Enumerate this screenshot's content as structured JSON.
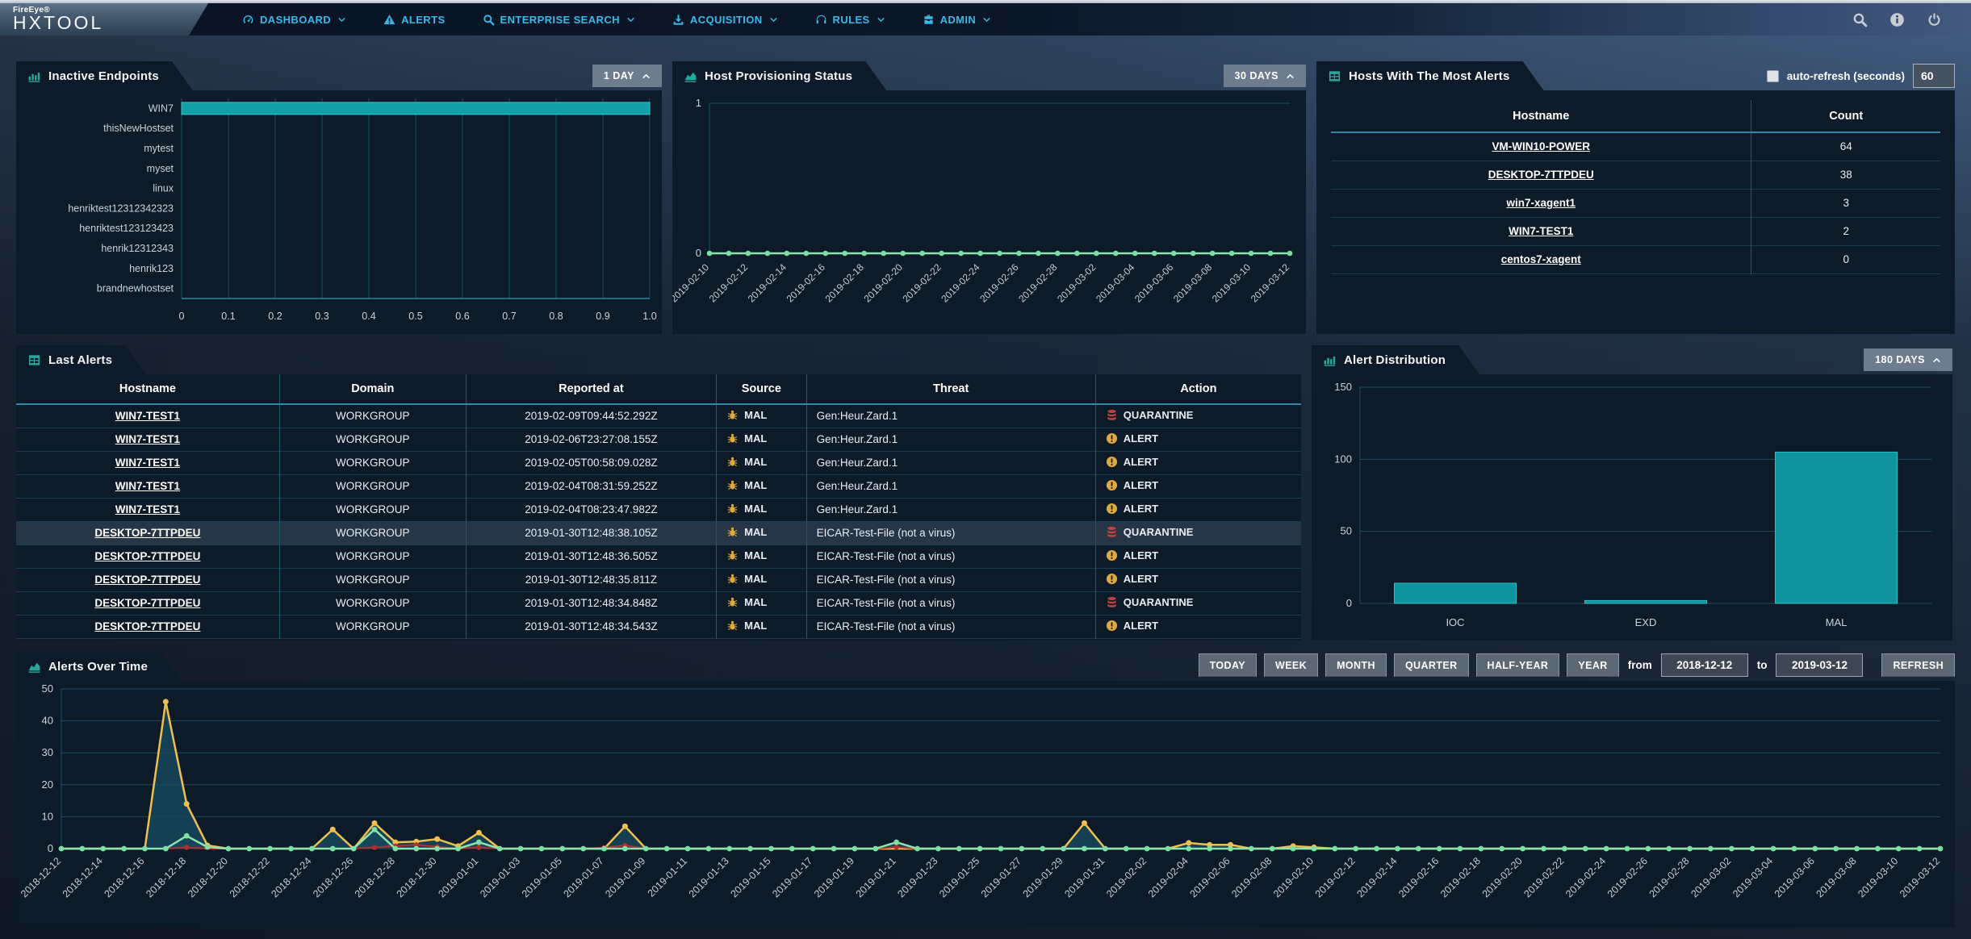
{
  "navbar": {
    "brand_small": "FireEye®",
    "brand_large": "HXTOOL",
    "items": [
      {
        "label": "DASHBOARD",
        "icon": "gauge-icon",
        "caret": true
      },
      {
        "label": "ALERTS",
        "icon": "warning-icon",
        "caret": false
      },
      {
        "label": "ENTERPRISE SEARCH",
        "icon": "search-icon",
        "caret": true
      },
      {
        "label": "ACQUISITION",
        "icon": "download-icon",
        "caret": true
      },
      {
        "label": "RULES",
        "icon": "headphones-icon",
        "caret": true
      },
      {
        "label": "ADMIN",
        "icon": "briefcase-icon",
        "caret": true
      }
    ],
    "right_icons": [
      "search-icon",
      "info-icon",
      "power-icon"
    ]
  },
  "panels": {
    "inactive_endpoints": {
      "title": "Inactive Endpoints",
      "range_button": "1 DAY"
    },
    "host_provisioning": {
      "title": "Host Provisioning Status",
      "range_button": "30 DAYS"
    },
    "hosts_most_alerts": {
      "title": "Hosts With The Most Alerts",
      "auto_refresh_label": "auto-refresh (seconds)",
      "auto_refresh_value": "60",
      "columns": [
        "Hostname",
        "Count"
      ],
      "rows": [
        {
          "hostname": "VM-WIN10-POWER",
          "count": 64
        },
        {
          "hostname": "DESKTOP-7TTPDEU",
          "count": 38
        },
        {
          "hostname": "win7-xagent1",
          "count": 3
        },
        {
          "hostname": "WIN7-TEST1",
          "count": 2
        },
        {
          "hostname": "centos7-xagent",
          "count": 0
        }
      ]
    },
    "last_alerts": {
      "title": "Last Alerts",
      "columns": [
        "Hostname",
        "Domain",
        "Reported at",
        "Source",
        "Threat",
        "Action"
      ],
      "rows": [
        {
          "hostname": "WIN7-TEST1",
          "domain": "WORKGROUP",
          "reported_at": "2019-02-09T09:44:52.292Z",
          "source": "MAL",
          "source_icon": "bug-icon",
          "threat": "Gen:Heur.Zard.1",
          "action": "QUARANTINE",
          "action_icon": "database-icon",
          "highlighted": false
        },
        {
          "hostname": "WIN7-TEST1",
          "domain": "WORKGROUP",
          "reported_at": "2019-02-06T23:27:08.155Z",
          "source": "MAL",
          "source_icon": "bug-icon",
          "threat": "Gen:Heur.Zard.1",
          "action": "ALERT",
          "action_icon": "alert-circle-icon",
          "highlighted": false
        },
        {
          "hostname": "WIN7-TEST1",
          "domain": "WORKGROUP",
          "reported_at": "2019-02-05T00:58:09.028Z",
          "source": "MAL",
          "source_icon": "bug-icon",
          "threat": "Gen:Heur.Zard.1",
          "action": "ALERT",
          "action_icon": "alert-circle-icon",
          "highlighted": false
        },
        {
          "hostname": "WIN7-TEST1",
          "domain": "WORKGROUP",
          "reported_at": "2019-02-04T08:31:59.252Z",
          "source": "MAL",
          "source_icon": "bug-icon",
          "threat": "Gen:Heur.Zard.1",
          "action": "ALERT",
          "action_icon": "alert-circle-icon",
          "highlighted": false
        },
        {
          "hostname": "WIN7-TEST1",
          "domain": "WORKGROUP",
          "reported_at": "2019-02-04T08:23:47.982Z",
          "source": "MAL",
          "source_icon": "bug-icon",
          "threat": "Gen:Heur.Zard.1",
          "action": "ALERT",
          "action_icon": "alert-circle-icon",
          "highlighted": false
        },
        {
          "hostname": "DESKTOP-7TTPDEU",
          "domain": "WORKGROUP",
          "reported_at": "2019-01-30T12:48:38.105Z",
          "source": "MAL",
          "source_icon": "bug-icon",
          "threat": "EICAR-Test-File (not a virus)",
          "action": "QUARANTINE",
          "action_icon": "database-icon",
          "highlighted": true
        },
        {
          "hostname": "DESKTOP-7TTPDEU",
          "domain": "WORKGROUP",
          "reported_at": "2019-01-30T12:48:36.505Z",
          "source": "MAL",
          "source_icon": "bug-icon",
          "threat": "EICAR-Test-File (not a virus)",
          "action": "ALERT",
          "action_icon": "alert-circle-icon",
          "highlighted": false
        },
        {
          "hostname": "DESKTOP-7TTPDEU",
          "domain": "WORKGROUP",
          "reported_at": "2019-01-30T12:48:35.811Z",
          "source": "MAL",
          "source_icon": "bug-icon",
          "threat": "EICAR-Test-File (not a virus)",
          "action": "ALERT",
          "action_icon": "alert-circle-icon",
          "highlighted": false
        },
        {
          "hostname": "DESKTOP-7TTPDEU",
          "domain": "WORKGROUP",
          "reported_at": "2019-01-30T12:48:34.848Z",
          "source": "MAL",
          "source_icon": "bug-icon",
          "threat": "EICAR-Test-File (not a virus)",
          "action": "QUARANTINE",
          "action_icon": "database-icon",
          "highlighted": false
        },
        {
          "hostname": "DESKTOP-7TTPDEU",
          "domain": "WORKGROUP",
          "reported_at": "2019-01-30T12:48:34.543Z",
          "source": "MAL",
          "source_icon": "bug-icon",
          "threat": "EICAR-Test-File (not a virus)",
          "action": "ALERT",
          "action_icon": "alert-circle-icon",
          "highlighted": false
        }
      ]
    },
    "alert_distribution": {
      "title": "Alert Distribution",
      "range_button": "180 DAYS"
    },
    "alerts_over_time": {
      "title": "Alerts Over Time",
      "range_buttons": [
        "TODAY",
        "WEEK",
        "MONTH",
        "QUARTER",
        "HALF-YEAR",
        "YEAR"
      ],
      "from_label": "from",
      "from_value": "2018-12-12",
      "to_label": "to",
      "to_value": "2019-03-12",
      "refresh_label": "REFRESH"
    }
  },
  "chart_data": [
    {
      "id": "inactive_endpoints",
      "type": "bar",
      "orientation": "horizontal",
      "title": "Inactive Endpoints",
      "categories": [
        "WIN7",
        "thisNewHostset",
        "mytest",
        "myset",
        "linux",
        "henriktest12312342323",
        "henriktest123123423",
        "henrik12312343",
        "henrik123",
        "brandnewhostset"
      ],
      "values": [
        1,
        0,
        0,
        0,
        0,
        0,
        0,
        0,
        0,
        0
      ],
      "xlim": [
        0,
        1
      ],
      "xticks": [
        "0",
        "0.1",
        "0.2",
        "0.3",
        "0.4",
        "0.5",
        "0.6",
        "0.7",
        "0.8",
        "0.9",
        "1.0"
      ],
      "grid": true
    },
    {
      "id": "host_provisioning",
      "type": "line",
      "title": "Host Provisioning Status",
      "n_points": 31,
      "values": [
        0,
        0,
        0,
        0,
        0,
        0,
        0,
        0,
        0,
        0,
        0,
        0,
        0,
        0,
        0,
        0,
        0,
        0,
        0,
        0,
        0,
        0,
        0,
        0,
        0,
        0,
        0,
        0,
        0,
        0,
        0
      ],
      "x_tick_labels": [
        "2019-02-10",
        "2019-02-12",
        "2019-02-14",
        "2019-02-16",
        "2019-02-18",
        "2019-02-20",
        "2019-02-22",
        "2019-02-24",
        "2019-02-26",
        "2019-02-28",
        "2019-03-02",
        "2019-03-04",
        "2019-03-06",
        "2019-03-08",
        "2019-03-10",
        "2019-03-12"
      ],
      "ylim": [
        0,
        1
      ],
      "yticks": [
        0,
        1
      ]
    },
    {
      "id": "alert_distribution",
      "type": "bar",
      "orientation": "vertical",
      "title": "Alert Distribution",
      "categories": [
        "IOC",
        "EXD",
        "MAL"
      ],
      "values": [
        14,
        2,
        105
      ],
      "ylim": [
        0,
        150
      ],
      "yticks": [
        0,
        50,
        100,
        150
      ]
    },
    {
      "id": "alerts_over_time",
      "type": "line",
      "title": "Alerts Over Time",
      "n_points": 91,
      "x_range": [
        "2018-12-12",
        "2019-03-12"
      ],
      "x_tick_labels": [
        "2018-12-12",
        "2018-12-14",
        "2018-12-16",
        "2018-12-18",
        "2018-12-20",
        "2018-12-22",
        "2018-12-24",
        "2018-12-26",
        "2018-12-28",
        "2018-12-30",
        "2019-01-01",
        "2019-01-03",
        "2019-01-05",
        "2019-01-07",
        "2019-01-09",
        "2019-01-11",
        "2019-01-13",
        "2019-01-15",
        "2019-01-17",
        "2019-01-19",
        "2019-01-21",
        "2019-01-23",
        "2019-01-25",
        "2019-01-27",
        "2019-01-29",
        "2019-01-31",
        "2019-02-02",
        "2019-02-04",
        "2019-02-06",
        "2019-02-08",
        "2019-02-10",
        "2019-02-12",
        "2019-02-14",
        "2019-02-16",
        "2019-02-18",
        "2019-02-20",
        "2019-02-22",
        "2019-02-24",
        "2019-02-26",
        "2019-02-28",
        "2019-03-02",
        "2019-03-04",
        "2019-03-06",
        "2019-03-08",
        "2019-03-10",
        "2019-03-12"
      ],
      "ylim": [
        0,
        50
      ],
      "yticks": [
        0,
        10,
        20,
        30,
        40,
        50
      ],
      "series": [
        {
          "name": "yellow",
          "color_key": "line_yellow",
          "values": [
            0,
            0,
            0,
            0,
            0,
            46,
            14,
            1,
            0,
            0,
            0,
            0,
            0,
            6,
            0,
            8,
            2,
            2.2,
            3,
            0.8,
            5,
            0,
            0,
            0,
            0,
            0,
            0,
            7,
            0,
            0,
            0,
            0,
            0,
            0,
            0,
            0,
            0,
            0,
            0,
            0,
            0,
            0,
            0,
            0,
            0,
            0,
            0,
            0,
            0,
            8,
            0,
            0,
            0,
            0,
            1.8,
            1.2,
            1.2,
            0,
            0,
            0.8,
            0.4,
            0,
            0,
            0,
            0,
            0,
            0,
            0,
            0,
            0,
            0,
            0,
            0,
            0,
            0,
            0,
            0,
            0,
            0,
            0,
            0,
            0,
            0,
            0,
            0,
            0,
            0,
            0,
            0,
            0,
            0
          ]
        },
        {
          "name": "red",
          "color_key": "line_red",
          "values": [
            0,
            0,
            0,
            0,
            0,
            0,
            0.4,
            0,
            0,
            0,
            0,
            0,
            0,
            0,
            0,
            0.4,
            0.8,
            1.2,
            0.6,
            0,
            0.4,
            0,
            0,
            0,
            0,
            0,
            0.3,
            1,
            0,
            0,
            0,
            0,
            0,
            0,
            0,
            0,
            0,
            0,
            0,
            0,
            0.5,
            0,
            0,
            0,
            0,
            0,
            0,
            0,
            0,
            0,
            0,
            0,
            0,
            0,
            0,
            0,
            0,
            0,
            0,
            0,
            0,
            0,
            0,
            0,
            0,
            0,
            0,
            0,
            0,
            0,
            0,
            0,
            0,
            0,
            0,
            0,
            0,
            0,
            0,
            0,
            0,
            0,
            0,
            0,
            0,
            0,
            0,
            0,
            0,
            0,
            0
          ]
        },
        {
          "name": "green",
          "color_key": "line_green",
          "values": [
            0,
            0,
            0,
            0,
            0,
            0,
            4,
            0.5,
            0,
            0,
            0,
            0,
            0,
            0,
            0,
            6,
            0,
            0,
            0,
            0,
            2,
            0,
            0,
            0,
            0,
            0,
            0,
            0,
            0,
            0,
            0,
            0,
            0,
            0,
            0,
            0,
            0,
            0,
            0,
            0,
            2,
            0,
            0,
            0,
            0,
            0,
            0,
            0,
            0,
            0,
            0,
            0,
            0,
            0,
            0,
            0,
            0,
            0,
            0,
            0,
            0,
            0,
            0,
            0,
            0,
            0,
            0,
            0,
            0,
            0,
            0,
            0,
            0,
            0,
            0,
            0,
            0,
            0,
            0,
            0,
            0,
            0,
            0,
            0,
            0,
            0,
            0,
            0,
            0,
            0,
            0
          ]
        }
      ]
    }
  ],
  "colors": {
    "accent": "#39b9e9",
    "teal_bar": "#13a0a9",
    "teal_bar_edge": "#35c6cd",
    "dist_bar": "#0f939c",
    "dist_bar_edge": "#2cc0c8",
    "line_green": "#8ce4ae",
    "line_yellow": "#f0c04e",
    "line_red": "#b2312e",
    "area_fill": "#17465a",
    "warn_icon": "#dfa93f",
    "danger_icon": "#c2403f",
    "grid": "#1c5063",
    "axis_text": "#c8d3de"
  }
}
